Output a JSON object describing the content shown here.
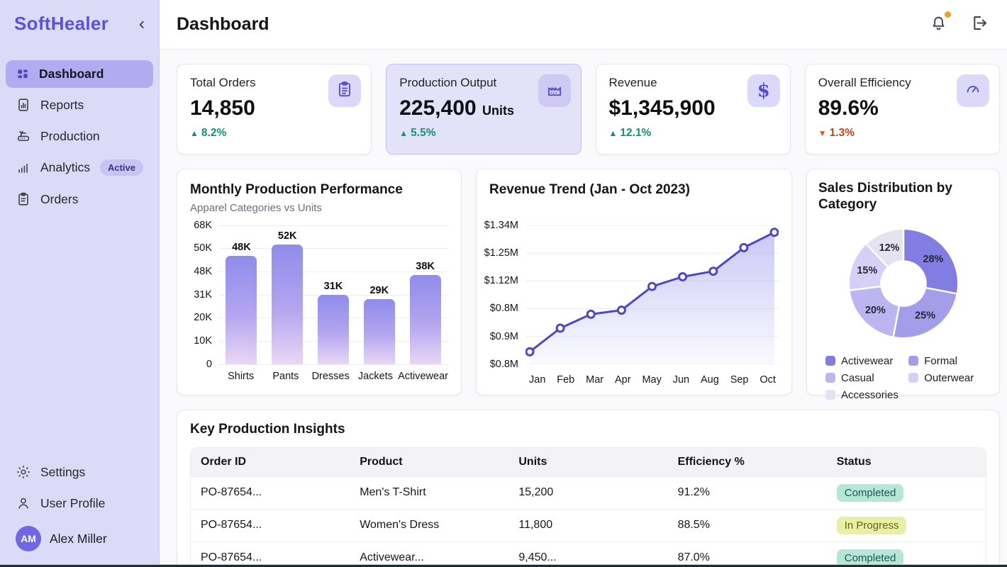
{
  "app": {
    "logo": "SoftHealer"
  },
  "header": {
    "title": "Dashboard",
    "notification_dot_color": "#f0a030"
  },
  "sidebar": {
    "items": [
      {
        "label": "Dashboard",
        "icon": "dashboard-grid-icon",
        "active": true
      },
      {
        "label": "Reports",
        "icon": "reports-icon",
        "active": false
      },
      {
        "label": "Production",
        "icon": "production-machine-icon",
        "active": false
      },
      {
        "label": "Analytics",
        "icon": "analytics-bars-icon",
        "active": false,
        "badge": "Active"
      },
      {
        "label": "Orders",
        "icon": "orders-clipboard-icon",
        "active": false
      }
    ],
    "footer_items": [
      {
        "label": "Settings",
        "icon": "gear-icon"
      },
      {
        "label": "User Profile",
        "icon": "user-icon"
      }
    ],
    "user": {
      "initials": "AM",
      "name": "Alex Miller"
    }
  },
  "kpis": [
    {
      "label": "Total Orders",
      "value": "14,850",
      "unit": "",
      "delta": "8.2%",
      "direction": "up",
      "icon": "clipboard-icon",
      "highlight": false
    },
    {
      "label": "Production Output",
      "value": "225,400",
      "unit": "Units",
      "delta": "5.5%",
      "direction": "up",
      "icon": "factory-icon",
      "highlight": true
    },
    {
      "label": "Revenue",
      "value": "$1,345,900",
      "unit": "",
      "delta": "12.1%",
      "direction": "up",
      "icon": "dollar-icon",
      "highlight": false
    },
    {
      "label": "Overall Efficiency",
      "value": "89.6%",
      "unit": "",
      "delta": "1.3%",
      "direction": "down",
      "icon": "gauge-icon",
      "highlight": false
    }
  ],
  "chart_data": [
    {
      "type": "bar",
      "title": "Monthly Production Performance",
      "subtitle": "Apparel Categories vs Units",
      "categories": [
        "Shirts",
        "Pants",
        "Dresses",
        "Jackets",
        "Activewear"
      ],
      "values": [
        48000,
        52000,
        31000,
        29000,
        38000
      ],
      "value_labels": [
        "48K",
        "52K",
        "31K",
        "29K",
        "38K"
      ],
      "y_ticks_bottom_to_top": [
        "0",
        "10K",
        "20K",
        "31K",
        "48K",
        "50K",
        "68K"
      ],
      "bar_height_pct": [
        78,
        86,
        50,
        47,
        64
      ],
      "bar_color_top": "#8f8cec",
      "bar_color_bottom": "#e9d7f4",
      "grid": true
    },
    {
      "type": "line",
      "title": "Revenue Trend (Jan - Oct 2023)",
      "x": [
        "Jan",
        "Feb",
        "Mar",
        "Apr",
        "May",
        "Jun",
        "Aug",
        "Sep",
        "Oct"
      ],
      "y_ticks_bottom_to_top": [
        "$0.8M",
        "$0.9M",
        "$0.8M",
        "$1.12M",
        "$1.25M",
        "$1.34M"
      ],
      "points_fraction_of_plot_height": [
        0.09,
        0.26,
        0.36,
        0.39,
        0.56,
        0.63,
        0.67,
        0.84,
        0.95
      ],
      "line_color": "#4f46c8",
      "area_fill_color": "#8c87eb",
      "markers": "white-filled-circles",
      "grid": true
    },
    {
      "type": "pie",
      "donut": true,
      "title": "Sales Distribution by Category",
      "slices": [
        {
          "label": "Activewear",
          "value": 28,
          "pct_label": "28%",
          "color": "#837ce2"
        },
        {
          "label": "Formal",
          "value": 25,
          "pct_label": "25%",
          "color": "#a49de9"
        },
        {
          "label": "Casual",
          "value": 20,
          "pct_label": "20%",
          "color": "#bdb5ef"
        },
        {
          "label": "Outerwear",
          "value": 15,
          "pct_label": "15%",
          "color": "#d6d0f6"
        },
        {
          "label": "Accessories",
          "value": 12,
          "pct_label": "12%",
          "color": "#e4e3ef"
        }
      ],
      "start": "top",
      "direction": "clockwise",
      "legend_position": "bottom",
      "legend_order": [
        "Activewear",
        "Formal",
        "Casual",
        "Outerwear",
        "Accessories"
      ]
    }
  ],
  "table": {
    "title": "Key Production Insights",
    "columns": [
      "Order ID",
      "Product",
      "Units",
      "Efficiency %",
      "Status"
    ],
    "rows": [
      {
        "order_id": "PO-87654...",
        "product": "Men's T-Shirt",
        "units": "15,200",
        "efficiency": "91.2%",
        "status": "Completed",
        "status_type": "completed"
      },
      {
        "order_id": "PO-87654...",
        "product": "Women's Dress",
        "units": "11,800",
        "efficiency": "88.5%",
        "status": "In Progress",
        "status_type": "progress"
      },
      {
        "order_id": "PO-87654...",
        "product": "Activewear...",
        "units": "9,450...",
        "efficiency": "87.0%",
        "status": "Completed",
        "status_type": "completed"
      }
    ]
  },
  "colors": {
    "accent": "#5a52dc",
    "sidebar_bg": "#dcdbf7",
    "active_item_bg": "#b1acf1",
    "positive": "#0e9573",
    "negative": "#bf4310",
    "completed_pill_bg": "#b5e6d8",
    "in_progress_pill_bg": "#e9efa4"
  }
}
